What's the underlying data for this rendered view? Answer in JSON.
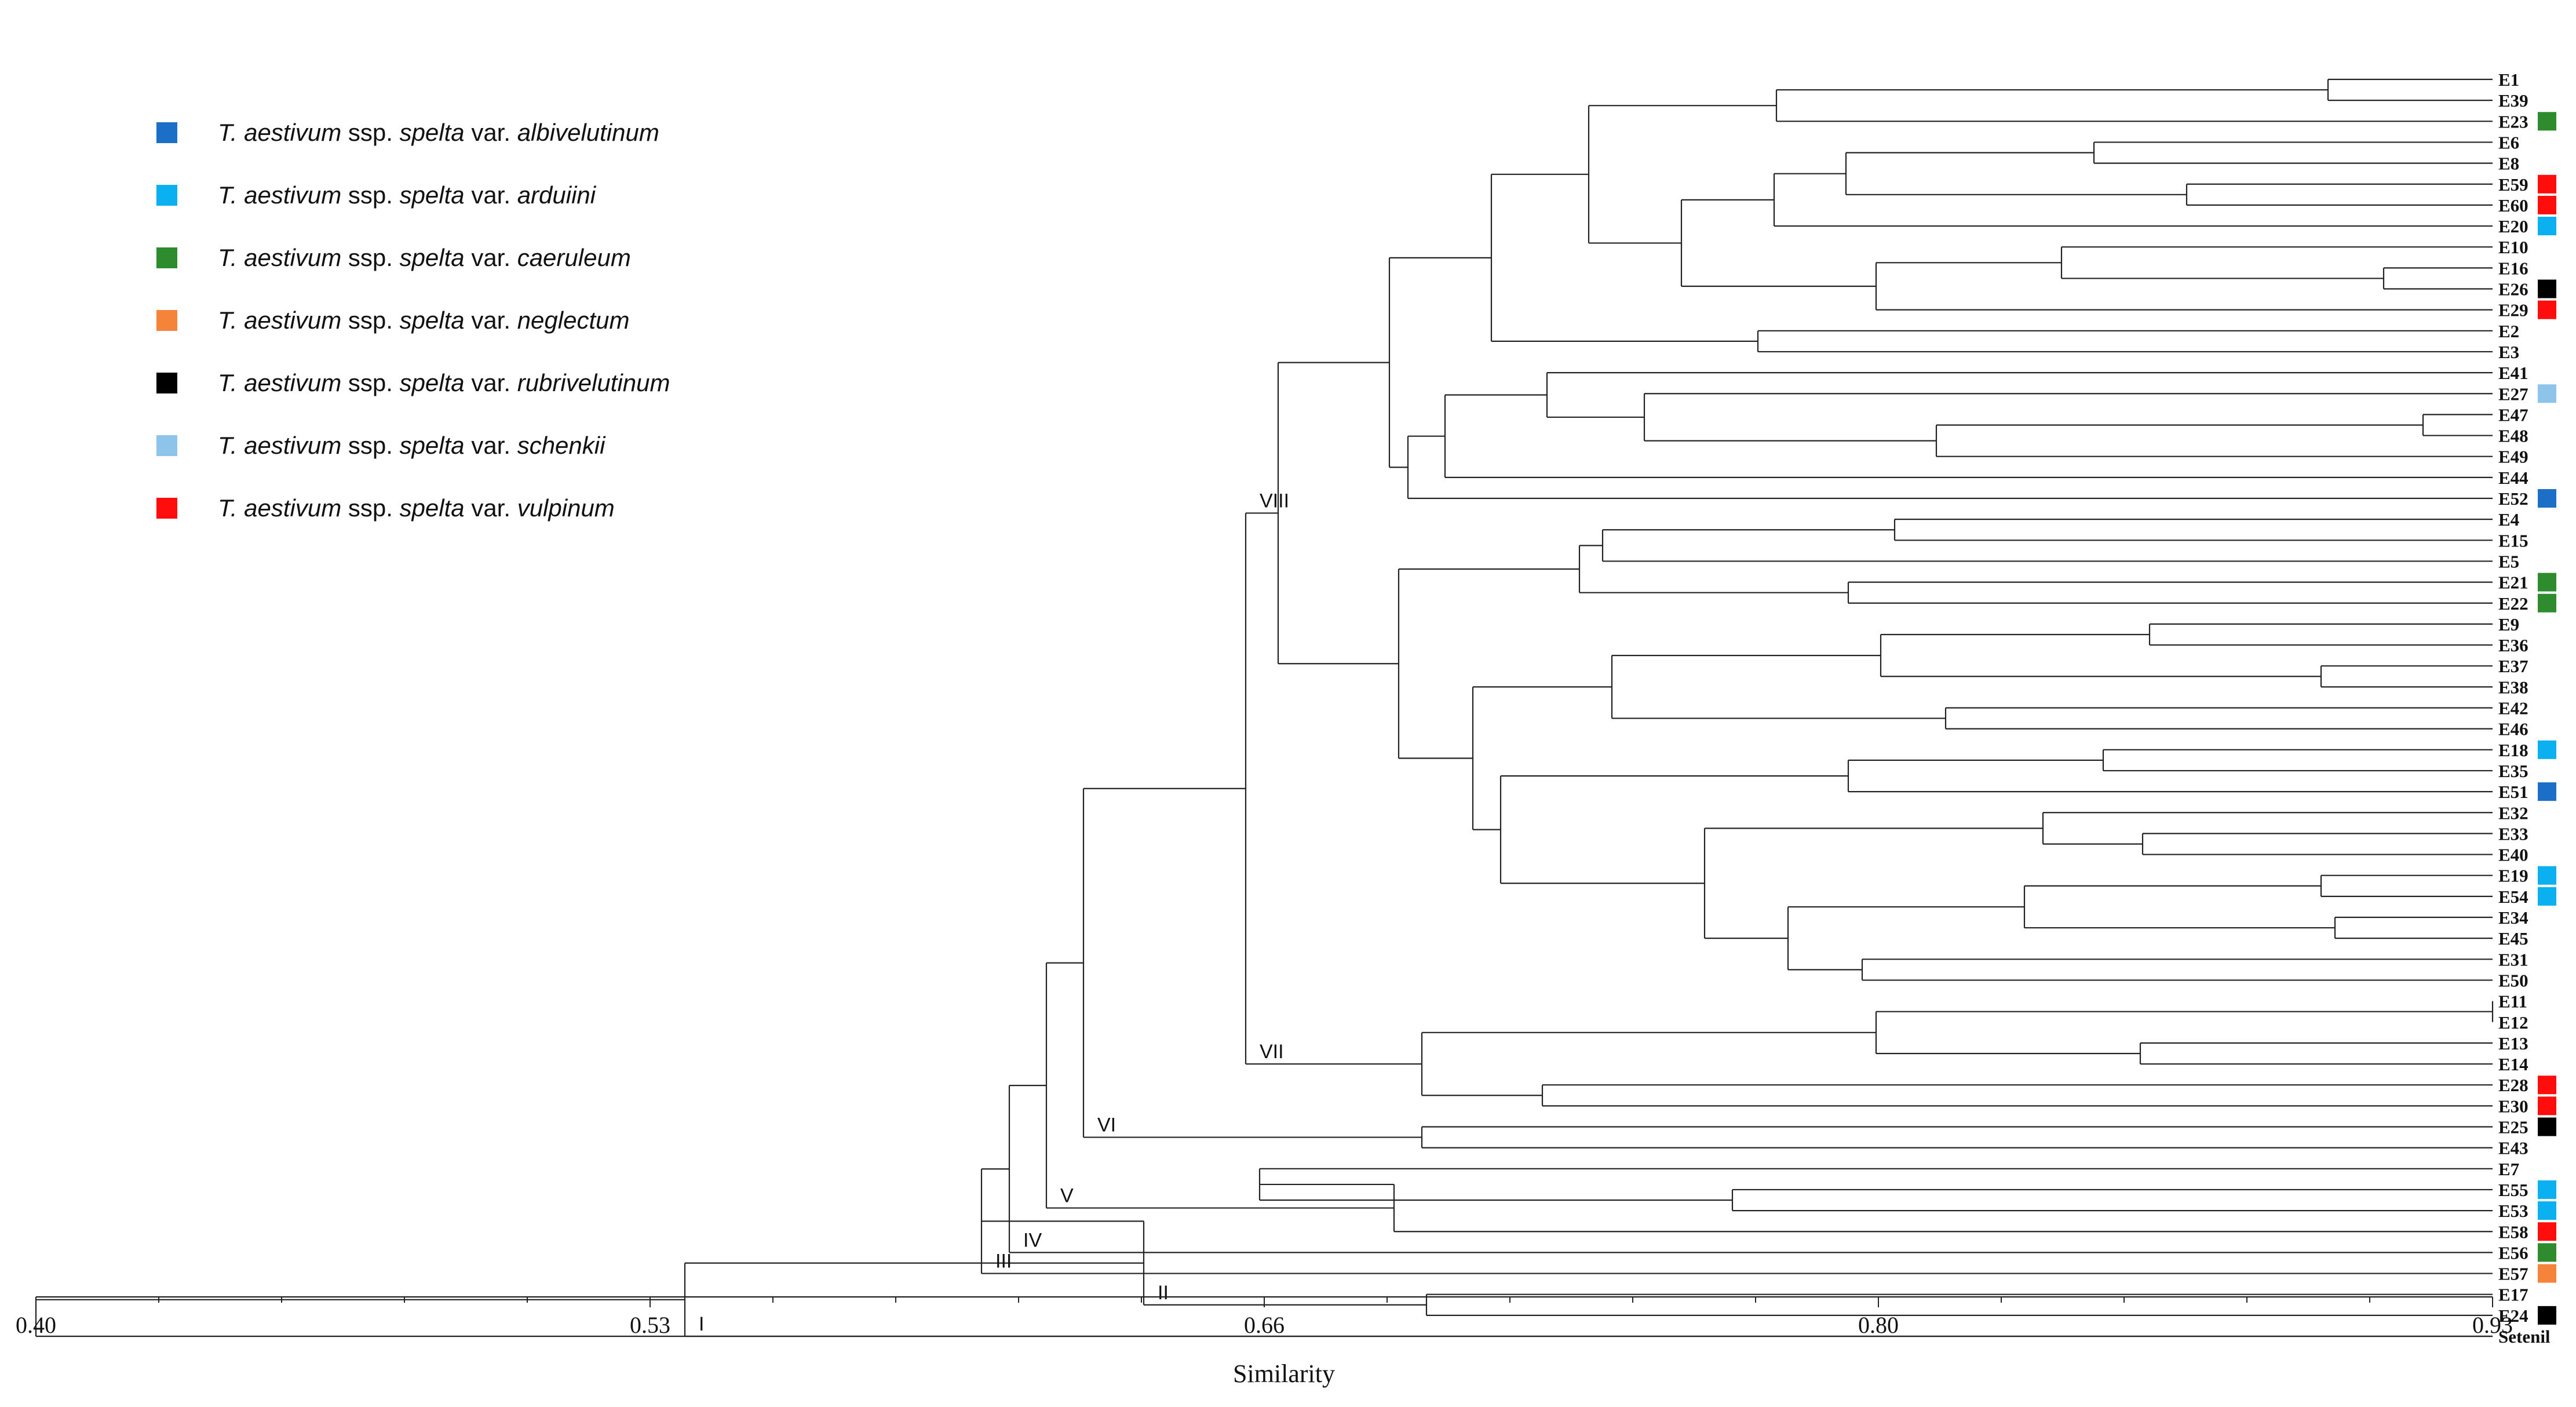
{
  "chart_data": {
    "type": "dendrogram",
    "xlabel": "Similarity",
    "xlim": [
      0.4,
      0.93
    ],
    "ticks": [
      "0.40",
      "0.53",
      "0.66",
      "0.80",
      "0.93"
    ],
    "leaves": [
      "E1",
      "E39",
      "E23",
      "E6",
      "E8",
      "E59",
      "E60",
      "E20",
      "E10",
      "E16",
      "E26",
      "E29",
      "E2",
      "E3",
      "E41",
      "E27",
      "E47",
      "E48",
      "E49",
      "E44",
      "E52",
      "E4",
      "E15",
      "E5",
      "E21",
      "E22",
      "E9",
      "E36",
      "E37",
      "E38",
      "E42",
      "E46",
      "E18",
      "E35",
      "E51",
      "E32",
      "E33",
      "E40",
      "E19",
      "E54",
      "E34",
      "E45",
      "E31",
      "E50",
      "E11",
      "E12",
      "E13",
      "E14",
      "E28",
      "E30",
      "E25",
      "E43",
      "E7",
      "E55",
      "E53",
      "E58",
      "E56",
      "E57",
      "E17",
      "E24",
      "Setenil"
    ],
    "leaf_markers": {
      "E23": "caeruleum",
      "E59": "vulpinum",
      "E60": "vulpinum",
      "E20": "arduiini",
      "E26": "rubrivelutinum",
      "E29": "vulpinum",
      "E27": "schenkii",
      "E52": "albivelutinum",
      "E21": "caeruleum",
      "E22": "caeruleum",
      "E18": "arduiini",
      "E51": "albivelutinum",
      "E19": "arduiini",
      "E54": "arduiini",
      "E28": "vulpinum",
      "E30": "vulpinum",
      "E25": "rubrivelutinum",
      "E55": "arduiini",
      "E53": "arduiini",
      "E58": "vulpinum",
      "E56": "caeruleum",
      "E57": "neglectum",
      "E24": "rubrivelutinum"
    },
    "merges": [
      {
        "id": "n1",
        "children": [
          "E1",
          "E39"
        ],
        "sim": 0.8945
      },
      {
        "id": "n2",
        "children": [
          "n1",
          "E23"
        ],
        "sim": 0.7755
      },
      {
        "id": "n3",
        "children": [
          "E6",
          "E8"
        ],
        "sim": 0.844
      },
      {
        "id": "n4",
        "children": [
          "E59",
          "E60"
        ],
        "sim": 0.864
      },
      {
        "id": "n5",
        "children": [
          "n3",
          "n4"
        ],
        "sim": 0.7905
      },
      {
        "id": "n6",
        "children": [
          "n5",
          "E20"
        ],
        "sim": 0.775
      },
      {
        "id": "n7",
        "children": [
          "E16",
          "E26"
        ],
        "sim": 0.9065
      },
      {
        "id": "n8",
        "children": [
          "E10",
          "n7"
        ],
        "sim": 0.837
      },
      {
        "id": "n9",
        "children": [
          "n8",
          "E29"
        ],
        "sim": 0.797
      },
      {
        "id": "n10",
        "children": [
          "n6",
          "n9"
        ],
        "sim": 0.755
      },
      {
        "id": "n11",
        "children": [
          "n2",
          "n10"
        ],
        "sim": 0.735
      },
      {
        "id": "n12",
        "children": [
          "E2",
          "E3"
        ],
        "sim": 0.7715
      },
      {
        "id": "n13",
        "children": [
          "n11",
          "n12"
        ],
        "sim": 0.714
      },
      {
        "id": "n14",
        "children": [
          "E47",
          "E48"
        ],
        "sim": 0.915
      },
      {
        "id": "n15",
        "children": [
          "n14",
          "E49"
        ],
        "sim": 0.81
      },
      {
        "id": "n16",
        "children": [
          "E27",
          "n15"
        ],
        "sim": 0.747
      },
      {
        "id": "n17",
        "children": [
          "E41",
          "n16"
        ],
        "sim": 0.726
      },
      {
        "id": "n18",
        "children": [
          "n17",
          "E44"
        ],
        "sim": 0.704
      },
      {
        "id": "n19",
        "children": [
          "n18",
          "E52"
        ],
        "sim": 0.696
      },
      {
        "id": "n20",
        "children": [
          "n13",
          "n19"
        ],
        "sim": 0.692
      },
      {
        "id": "n21",
        "children": [
          "E4",
          "E15"
        ],
        "sim": 0.801
      },
      {
        "id": "n22",
        "children": [
          "n21",
          "E5"
        ],
        "sim": 0.738
      },
      {
        "id": "n23",
        "children": [
          "E21",
          "E22"
        ],
        "sim": 0.791
      },
      {
        "id": "n24",
        "children": [
          "n22",
          "n23"
        ],
        "sim": 0.733
      },
      {
        "id": "n25",
        "children": [
          "E9",
          "E36"
        ],
        "sim": 0.856
      },
      {
        "id": "n26",
        "children": [
          "E37",
          "E38"
        ],
        "sim": 0.893
      },
      {
        "id": "n27",
        "children": [
          "n25",
          "n26"
        ],
        "sim": 0.798
      },
      {
        "id": "n28",
        "children": [
          "E42",
          "E46"
        ],
        "sim": 0.812
      },
      {
        "id": "n29",
        "children": [
          "n27",
          "n28"
        ],
        "sim": 0.74
      },
      {
        "id": "n30",
        "children": [
          "E18",
          "E35"
        ],
        "sim": 0.846
      },
      {
        "id": "n31",
        "children": [
          "n30",
          "E51"
        ],
        "sim": 0.791
      },
      {
        "id": "n32",
        "children": [
          "E33",
          "E40"
        ],
        "sim": 0.8545
      },
      {
        "id": "n33",
        "children": [
          "E32",
          "n32"
        ],
        "sim": 0.833
      },
      {
        "id": "n34",
        "children": [
          "E19",
          "E54"
        ],
        "sim": 0.893
      },
      {
        "id": "n35",
        "children": [
          "E34",
          "E45"
        ],
        "sim": 0.896
      },
      {
        "id": "n36",
        "children": [
          "n34",
          "n35"
        ],
        "sim": 0.829
      },
      {
        "id": "n37",
        "children": [
          "E31",
          "E50"
        ],
        "sim": 0.794
      },
      {
        "id": "n38",
        "children": [
          "n36",
          "n37"
        ],
        "sim": 0.778
      },
      {
        "id": "n39",
        "children": [
          "n33",
          "n38"
        ],
        "sim": 0.76
      },
      {
        "id": "n40",
        "children": [
          "n31",
          "n39"
        ],
        "sim": 0.716
      },
      {
        "id": "n41",
        "children": [
          "n29",
          "n40"
        ],
        "sim": 0.71
      },
      {
        "id": "n42",
        "children": [
          "n24",
          "n41"
        ],
        "sim": 0.694
      },
      {
        "id": "n43",
        "children": [
          "n20",
          "n42"
        ],
        "sim": 0.668
      },
      {
        "id": "n44",
        "children": [
          "E11",
          "E12"
        ],
        "sim": 0.93
      },
      {
        "id": "n45",
        "children": [
          "E13",
          "E14"
        ],
        "sim": 0.854
      },
      {
        "id": "n46",
        "children": [
          "n44",
          "n45"
        ],
        "sim": 0.797
      },
      {
        "id": "n47",
        "children": [
          "E28",
          "E30"
        ],
        "sim": 0.725
      },
      {
        "id": "n48",
        "children": [
          "n46",
          "n47"
        ],
        "sim": 0.699
      },
      {
        "id": "n49",
        "children": [
          "n43",
          "n48"
        ],
        "sim": 0.661
      },
      {
        "id": "n50",
        "children": [
          "E25",
          "E43"
        ],
        "sim": 0.699
      },
      {
        "id": "n51",
        "children": [
          "n49",
          "n50"
        ],
        "sim": 0.626
      },
      {
        "id": "n52",
        "children": [
          "E55",
          "E53"
        ],
        "sim": 0.766
      },
      {
        "id": "n53",
        "children": [
          "E7",
          "n52"
        ],
        "sim": 0.664
      },
      {
        "id": "n54",
        "children": [
          "n53",
          "E58"
        ],
        "sim": 0.693
      },
      {
        "id": "n55",
        "children": [
          "n51",
          "n54"
        ],
        "sim": 0.618
      },
      {
        "id": "n56",
        "children": [
          "n55",
          "E56"
        ],
        "sim": 0.61
      },
      {
        "id": "n57",
        "children": [
          "n56",
          "E57"
        ],
        "sim": 0.604
      },
      {
        "id": "n58",
        "children": [
          "E17",
          "E24"
        ],
        "sim": 0.7
      },
      {
        "id": "n59",
        "children": [
          "n57",
          "n58"
        ],
        "sim": 0.639
      },
      {
        "id": "n60",
        "children": [
          "n59",
          "Setenil"
        ],
        "sim": 0.54
      },
      {
        "id": "n61",
        "children": [
          "n60",
          "Setenil"
        ],
        "sim": 0.4
      }
    ],
    "clusters": [
      {
        "label": "VIII",
        "node": "n43"
      },
      {
        "label": "VII",
        "node": "n48"
      },
      {
        "label": "VI",
        "node": "n50"
      },
      {
        "label": "V",
        "node": "n54"
      },
      {
        "label": "IV",
        "node": "E56"
      },
      {
        "label": "III",
        "node": "E57"
      },
      {
        "label": "II",
        "node": "n58"
      },
      {
        "label": "I",
        "node": "Setenil"
      }
    ]
  },
  "legend": [
    {
      "key": "albivelutinum",
      "color": "#1c6fc7",
      "genus": "T. aestivum",
      "ssp_prefix": "ssp.",
      "ssp": "spelta",
      "var_prefix": "var.",
      "var": "albivelutinum"
    },
    {
      "key": "arduiini",
      "color": "#0bb0f0",
      "genus": "T. aestivum",
      "ssp_prefix": "ssp.",
      "ssp": "spelta",
      "var_prefix": "var.",
      "var": "arduiini"
    },
    {
      "key": "caeruleum",
      "color": "#2e8b2e",
      "genus": "T. aestivum",
      "ssp_prefix": "ssp.",
      "ssp": "spelta",
      "var_prefix": "var.",
      "var": "caeruleum"
    },
    {
      "key": "neglectum",
      "color": "#f5843a",
      "genus": "T. aestivum",
      "ssp_prefix": "ssp.",
      "ssp": "spelta",
      "var_prefix": "var.",
      "var": "neglectum"
    },
    {
      "key": "rubrivelutinum",
      "color": "#000000",
      "genus": "T. aestivum",
      "ssp_prefix": "ssp.",
      "ssp": "spelta",
      "var_prefix": "var.",
      "var": "rubrivelutinum"
    },
    {
      "key": "schenkii",
      "color": "#8ec3ea",
      "genus": "T. aestivum",
      "ssp_prefix": "ssp.",
      "ssp": "spelta",
      "var_prefix": "var.",
      "var": "schenkii"
    },
    {
      "key": "vulpinum",
      "color": "#ff0d0d",
      "genus": "T. aestivum",
      "ssp_prefix": "ssp.",
      "ssp": "spelta",
      "var_prefix": "var.",
      "var": "vulpinum"
    }
  ]
}
